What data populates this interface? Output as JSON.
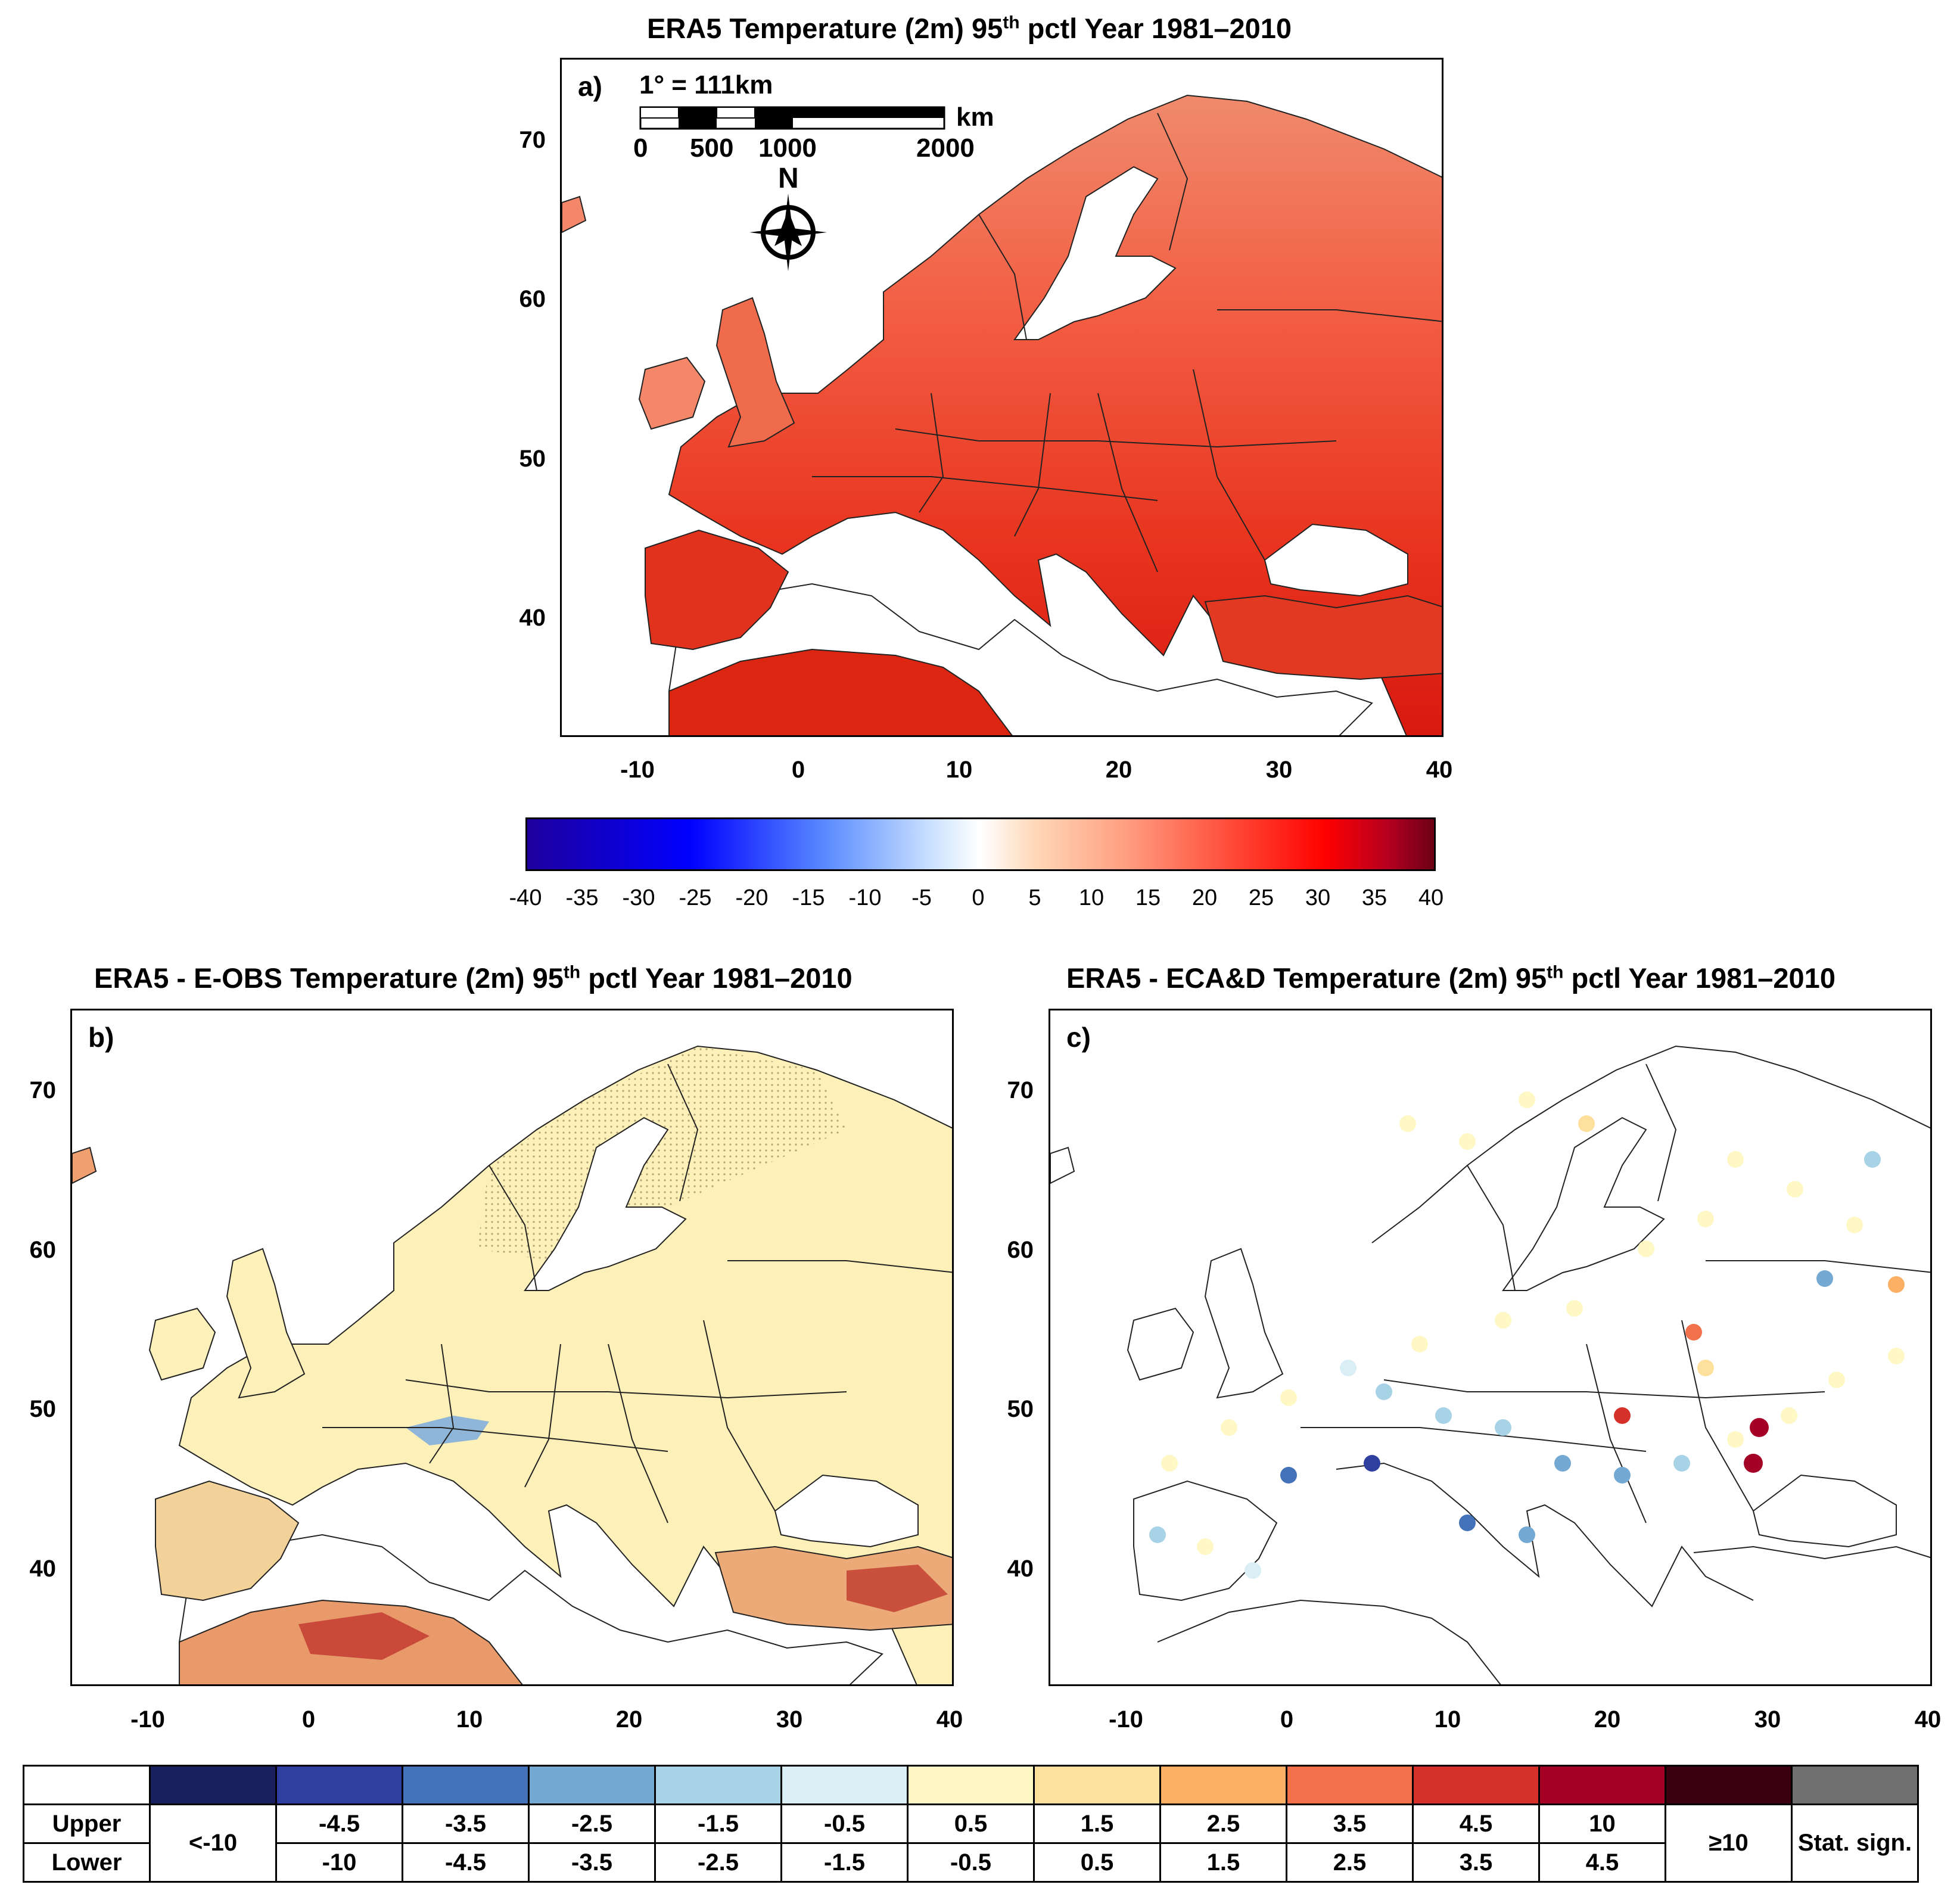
{
  "panel_a": {
    "title_pre": "ERA5 Temperature (2m) 95",
    "title_sup": "th",
    "title_post": " pctl Year 1981–2010",
    "label": "a)",
    "scale_title": "1° = 111km",
    "scale_unit": "km",
    "scale_ticks": [
      "0",
      "500",
      "1000",
      "2000"
    ],
    "north_label": "N",
    "y_ticks": [
      "70",
      "60",
      "50",
      "40"
    ],
    "x_ticks": [
      "-10",
      "0",
      "10",
      "20",
      "30",
      "40"
    ]
  },
  "colorbar": {
    "labels": [
      "-40",
      "-35",
      "-30",
      "-25",
      "-20",
      "-15",
      "-10",
      "-5",
      "0",
      "5",
      "10",
      "15",
      "20",
      "25",
      "30",
      "35",
      "40"
    ]
  },
  "panel_b": {
    "title_pre": "ERA5 - E-OBS Temperature (2m) 95",
    "title_sup": "th",
    "title_post": " pctl Year 1981–2010",
    "label": "b)",
    "y_ticks": [
      "70",
      "60",
      "50",
      "40"
    ],
    "x_ticks": [
      "-10",
      "0",
      "10",
      "20",
      "30",
      "40"
    ]
  },
  "panel_c": {
    "title_pre": "ERA5 - ECA&D Temperature (2m) 95",
    "title_sup": "th",
    "title_post": " pctl Year 1981–2010",
    "label": "c)",
    "y_ticks": [
      "70",
      "60",
      "50",
      "40"
    ],
    "x_ticks": [
      "-10",
      "0",
      "10",
      "20",
      "30",
      "40"
    ]
  },
  "legend": {
    "row_upper": "Upper",
    "row_lower": "Lower",
    "lt_minus10": "<-10",
    "ge10": "≥10",
    "stat_sign": "Stat. sign.",
    "upper": [
      "-4.5",
      "-3.5",
      "-2.5",
      "-1.5",
      "-0.5",
      "0.5",
      "1.5",
      "2.5",
      "3.5",
      "4.5",
      "10"
    ],
    "lower": [
      "-10",
      "-4.5",
      "-3.5",
      "-2.5",
      "-1.5",
      "-0.5",
      "0.5",
      "1.5",
      "2.5",
      "3.5",
      "4.5"
    ],
    "colors": [
      "#1a1f5e",
      "#2e3fa0",
      "#4472b8",
      "#74a9d4",
      "#a8d2e6",
      "#daeef6",
      "#fff8c4",
      "#fde09c",
      "#fbb066",
      "#f2704a",
      "#d5302a",
      "#a50026",
      "#3a0010",
      "#707070"
    ]
  }
}
